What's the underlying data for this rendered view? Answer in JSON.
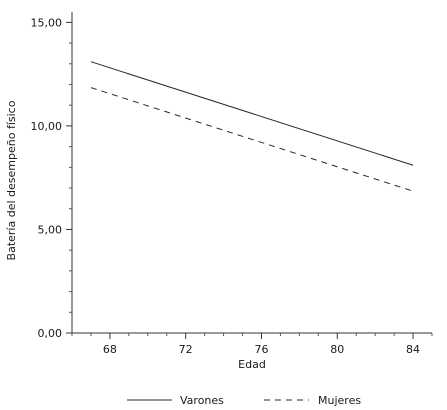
{
  "chart_data": {
    "type": "line",
    "xlabel": "Edad",
    "ylabel": "Batería del desempeño físico",
    "xlim": [
      66,
      85
    ],
    "ylim": [
      0,
      15.5
    ],
    "x_ticks": [
      68,
      72,
      76,
      80,
      84
    ],
    "x_tick_labels": [
      "68",
      "72",
      "76",
      "80",
      "84"
    ],
    "y_ticks": [
      0,
      5,
      10,
      15
    ],
    "y_tick_labels": [
      "0,00",
      "5,00",
      "10,00",
      "15,00"
    ],
    "grid": false,
    "legend_position": "bottom",
    "series": [
      {
        "name": "Varones",
        "style": "solid",
        "color": "#2a2a2a",
        "x": [
          67,
          84
        ],
        "y": [
          13.1,
          8.1
        ]
      },
      {
        "name": "Mujeres",
        "style": "dashed",
        "color": "#2a2a2a",
        "x": [
          67,
          84
        ],
        "y": [
          11.85,
          6.85
        ]
      }
    ]
  }
}
